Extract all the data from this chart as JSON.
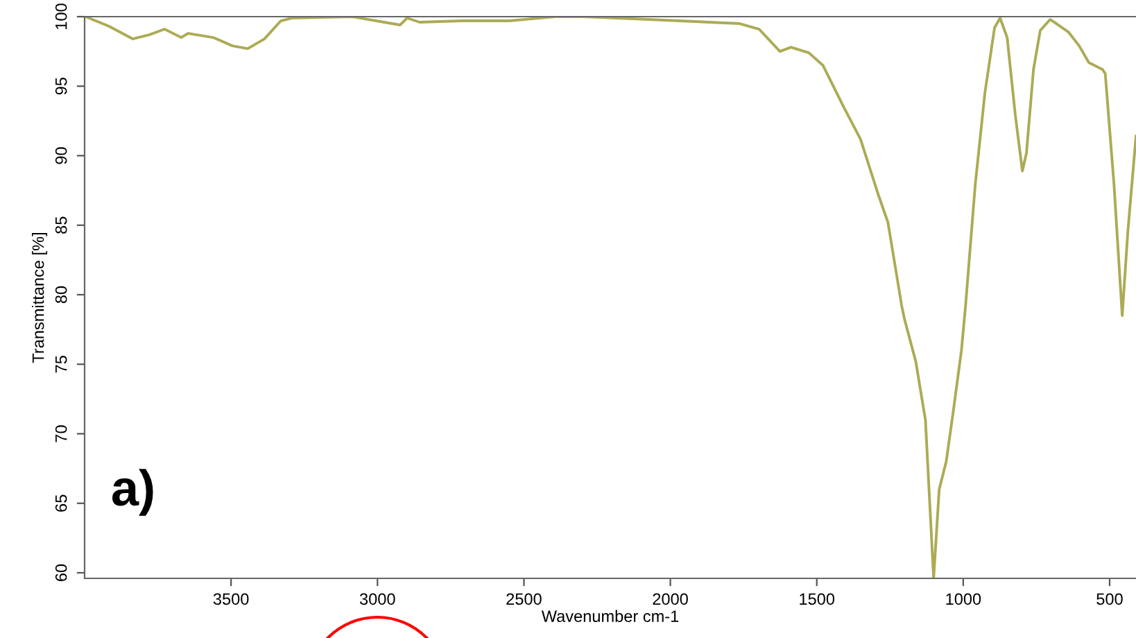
{
  "chart_data": {
    "type": "line",
    "xlabel": "Wavenumber cm-1",
    "ylabel": "Transmittance [%]",
    "annotations": [
      "a)"
    ],
    "xlim": [
      4000,
      410
    ],
    "ylim": [
      59.6,
      100
    ],
    "xticks": [
      3500,
      3000,
      2500,
      2000,
      1500,
      1000,
      500
    ],
    "yticks": [
      60,
      65,
      70,
      75,
      80,
      85,
      90,
      95,
      100
    ],
    "grid": false,
    "legend": false,
    "marker": "none",
    "line_style": "solid",
    "series": [
      {
        "color": "#abab55",
        "x": [
          3997,
          3916,
          3836,
          3779,
          3727,
          3670,
          3647,
          3561,
          3495,
          3443,
          3386,
          3330,
          3292,
          3088,
          2923,
          2899,
          2856,
          2710,
          2549,
          2393,
          2298,
          2076,
          1763,
          1697,
          1626,
          1588,
          1527,
          1479,
          1408,
          1351,
          1290,
          1257,
          1210,
          1200,
          1162,
          1129,
          1101,
          1082,
          1058,
          1034,
          1006,
          992,
          959,
          926,
          893,
          874,
          850,
          822,
          798,
          784,
          760,
          737,
          703,
          675,
          641,
          604,
          571,
          524,
          515,
          485,
          457,
          438,
          410
        ],
        "values": [
          100,
          99.3,
          98.4,
          98.7,
          99.1,
          98.5,
          98.8,
          98.5,
          97.9,
          97.7,
          98.4,
          99.7,
          99.9,
          100,
          99.4,
          99.9,
          99.6,
          99.7,
          99.7,
          100,
          100,
          99.8,
          99.5,
          99.1,
          97.5,
          97.8,
          97.4,
          96.5,
          93.5,
          91.2,
          87.2,
          85.2,
          79.2,
          78.2,
          75.2,
          71.0,
          59.6,
          66.0,
          68.0,
          71.6,
          76.0,
          79.2,
          87.9,
          94.5,
          99.2,
          99.9,
          98.5,
          92.9,
          88.9,
          90.2,
          96.2,
          99.0,
          99.8,
          99.4,
          98.9,
          97.9,
          96.7,
          96.2,
          95.9,
          87.9,
          78.5,
          84.5,
          91.4
        ]
      }
    ]
  }
}
